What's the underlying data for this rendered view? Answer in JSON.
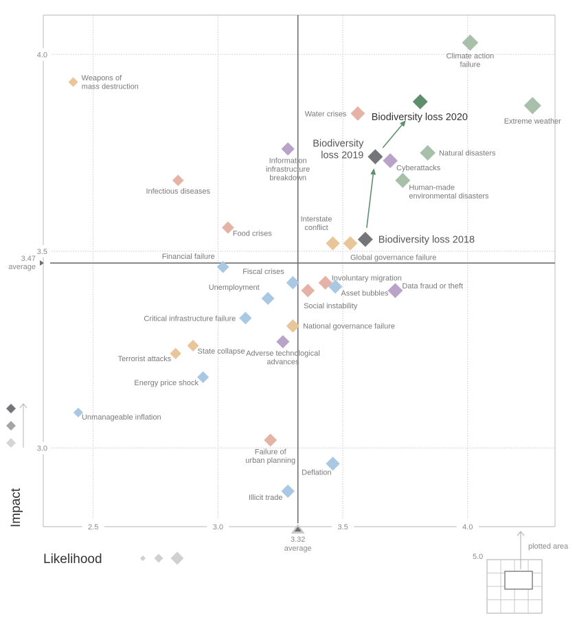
{
  "chart_data": {
    "type": "scatter",
    "title": "",
    "xlabel": "Likelihood",
    "ylabel": "Impact",
    "xlim": [
      2.3,
      4.35
    ],
    "ylim": [
      2.8,
      4.1
    ],
    "xticks": [
      "2.5",
      "3.0",
      "3.5",
      "4.0"
    ],
    "xtick_values": [
      2.5,
      3.0,
      3.5,
      4.0
    ],
    "yticks": [
      "4.0",
      "3.5",
      "3.0"
    ],
    "ytick_values": [
      4.0,
      3.5,
      3.0
    ],
    "grid": true,
    "averages": {
      "x": {
        "value": 3.32,
        "label_value": "3.32",
        "label": "average"
      },
      "y": {
        "value": 3.47,
        "label_value": "3.47",
        "label": "average"
      }
    },
    "categories": {
      "economic": "#a9c8e3",
      "environmental": "#a8bfaa",
      "geopolitical": "#e9c69a",
      "societal": "#e5b2a6",
      "technological": "#b9a3c8",
      "highlight_2020": "#5e8e6b",
      "highlight_past": "#747578"
    },
    "points": [
      {
        "name": "Weapons of mass destruction",
        "lines": [
          "Weapons of",
          "mass destruction"
        ],
        "x": 2.42,
        "y": 3.93,
        "cat": "geopolitical",
        "pos": "right"
      },
      {
        "name": "Climate action failure",
        "lines": [
          "Climate action",
          "failure"
        ],
        "x": 4.01,
        "y": 4.03,
        "cat": "environmental",
        "pos": "below"
      },
      {
        "name": "Water crises",
        "lines": [
          "Water crises"
        ],
        "x": 3.56,
        "y": 3.85,
        "cat": "societal",
        "pos": "left"
      },
      {
        "name": "Extreme weather",
        "lines": [
          "Extreme weather"
        ],
        "x": 4.26,
        "y": 3.87,
        "cat": "environmental",
        "pos": "below"
      },
      {
        "name": "Information infrastructure breakdown",
        "lines": [
          "Information",
          "infrastructure",
          "breakdown"
        ],
        "x": 3.28,
        "y": 3.76,
        "cat": "technological",
        "pos": "below"
      },
      {
        "name": "Cyberattacks",
        "lines": [
          "Cyberattacks"
        ],
        "x": 3.69,
        "y": 3.73,
        "cat": "technological",
        "pos": "below-right"
      },
      {
        "name": "Natural disasters",
        "lines": [
          "Natural disasters"
        ],
        "x": 3.84,
        "y": 3.75,
        "cat": "environmental",
        "pos": "right"
      },
      {
        "name": "Infectious diseases",
        "lines": [
          "Infectious diseases"
        ],
        "x": 2.84,
        "y": 3.68,
        "cat": "societal",
        "pos": "below"
      },
      {
        "name": "Human-made environmental disasters",
        "lines": [
          "Human-made",
          "environmental disasters"
        ],
        "x": 3.74,
        "y": 3.68,
        "cat": "environmental",
        "pos": "below-right"
      },
      {
        "name": "Food crises",
        "lines": [
          "Food crises"
        ],
        "x": 3.04,
        "y": 3.56,
        "cat": "societal",
        "pos": "below-right"
      },
      {
        "name": "Interstate conflict",
        "lines": [
          "Interstate",
          "conflict"
        ],
        "x": 3.46,
        "y": 3.52,
        "cat": "geopolitical",
        "pos": "above-left"
      },
      {
        "name": "Global governance failure",
        "lines": [
          "Global governance failure"
        ],
        "x": 3.53,
        "y": 3.52,
        "cat": "geopolitical",
        "pos": "below-right"
      },
      {
        "name": "Financial failure",
        "lines": [
          "Financial failure"
        ],
        "x": 3.02,
        "y": 3.46,
        "cat": "economic",
        "pos": "above-left"
      },
      {
        "name": "Fiscal crises",
        "lines": [
          "Fiscal crises"
        ],
        "x": 3.3,
        "y": 3.42,
        "cat": "economic",
        "pos": "above-left"
      },
      {
        "name": "Involuntary migration",
        "lines": [
          "Involuntary migration"
        ],
        "x": 3.43,
        "y": 3.42,
        "cat": "societal",
        "pos": "above-right"
      },
      {
        "name": "Social instability",
        "lines": [
          "Social instability"
        ],
        "x": 3.36,
        "y": 3.4,
        "cat": "societal",
        "pos": "below-social"
      },
      {
        "name": "Asset bubbles",
        "lines": [
          "Asset bubbles"
        ],
        "x": 3.47,
        "y": 3.41,
        "cat": "economic",
        "pos": "below-right"
      },
      {
        "name": "Data fraud or theft",
        "lines": [
          "Data fraud or theft"
        ],
        "x": 3.71,
        "y": 3.4,
        "cat": "technological",
        "pos": "above-right"
      },
      {
        "name": "Unemployment",
        "lines": [
          "Unemployment"
        ],
        "x": 3.2,
        "y": 3.38,
        "cat": "economic",
        "pos": "above-left"
      },
      {
        "name": "Critical infrastructure failure",
        "lines": [
          "Critical infrastructure failure"
        ],
        "x": 3.11,
        "y": 3.33,
        "cat": "economic",
        "pos": "left"
      },
      {
        "name": "National governance failure",
        "lines": [
          "National governance failure"
        ],
        "x": 3.3,
        "y": 3.31,
        "cat": "geopolitical",
        "pos": "right"
      },
      {
        "name": "Adverse technological advances",
        "lines": [
          "Adverse technological",
          "advances"
        ],
        "x": 3.26,
        "y": 3.27,
        "cat": "technological",
        "pos": "below"
      },
      {
        "name": "State collapse",
        "lines": [
          "State collapse"
        ],
        "x": 2.9,
        "y": 3.26,
        "cat": "geopolitical",
        "pos": "below-right"
      },
      {
        "name": "Terrorist attacks",
        "lines": [
          "Terrorist attacks"
        ],
        "x": 2.83,
        "y": 3.24,
        "cat": "geopolitical",
        "pos": "below-left"
      },
      {
        "name": "Energy price shock",
        "lines": [
          "Energy price shock"
        ],
        "x": 2.94,
        "y": 3.18,
        "cat": "economic",
        "pos": "below-left"
      },
      {
        "name": "Unmanageable inflation",
        "lines": [
          "Unmanageable inflation"
        ],
        "x": 2.44,
        "y": 3.09,
        "cat": "economic",
        "pos": "below-right"
      },
      {
        "name": "Failure of urban planning",
        "lines": [
          "Failure of",
          "urban planning"
        ],
        "x": 3.21,
        "y": 3.02,
        "cat": "societal",
        "pos": "below"
      },
      {
        "name": "Deflation",
        "lines": [
          "Deflation"
        ],
        "x": 3.46,
        "y": 2.96,
        "cat": "economic",
        "pos": "below-left"
      },
      {
        "name": "Illicit trade",
        "lines": [
          "Illicit trade"
        ],
        "x": 3.28,
        "y": 2.89,
        "cat": "economic",
        "pos": "below-left"
      }
    ],
    "highlight": [
      {
        "name": "Biodiversity loss 2018",
        "lines": [
          "Biodiversity loss 2018"
        ],
        "x": 3.59,
        "y": 3.53,
        "cat": "highlight_past",
        "pos": "right-big"
      },
      {
        "name": "Biodiversity loss 2019",
        "lines": [
          "Biodiversity",
          "loss 2019"
        ],
        "x": 3.63,
        "y": 3.74,
        "cat": "highlight_past",
        "pos": "left-big"
      },
      {
        "name": "Biodiversity loss 2020",
        "lines": [
          "Biodiversity loss 2020"
        ],
        "x": 3.81,
        "y": 3.88,
        "cat": "highlight_2020",
        "pos": "left-big20"
      }
    ],
    "legend": {
      "impact_label": "Impact",
      "likelihood_label": "Likelihood",
      "inset_value": "5.0",
      "inset_label": "plotted area"
    }
  }
}
